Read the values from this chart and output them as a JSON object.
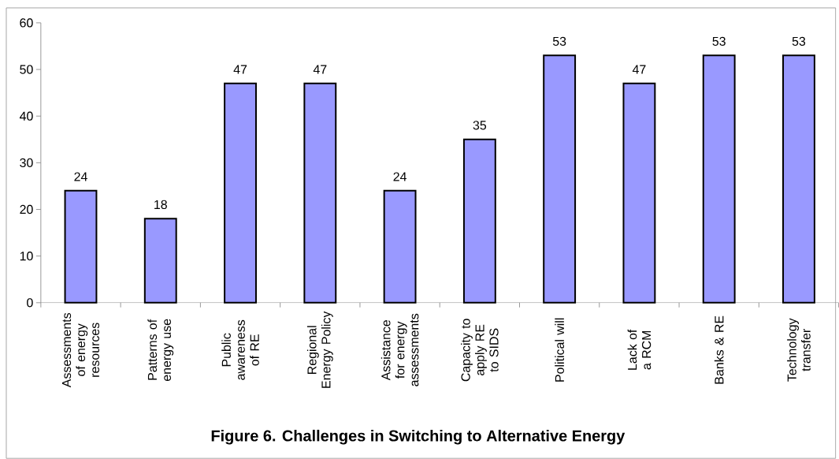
{
  "chart_data": {
    "type": "bar",
    "title": "Figure 6. Challenges in Switching to Alternative Energy",
    "categories": [
      "Assessments of energy resources",
      "Patterns of energy use",
      "Public awareness of RE",
      "Regional Energy Policy",
      "Assistance for energy assessments",
      "Capacity to apply RE to SIDS",
      "Political will",
      "Lack of a RCM",
      "Banks & RE",
      "Technology transfer"
    ],
    "values": [
      24,
      18,
      47,
      47,
      24,
      35,
      53,
      47,
      53,
      53
    ],
    "color": "#9999ff",
    "ylim": [
      0,
      60
    ],
    "yticks": [
      0,
      10,
      20,
      30,
      40,
      50,
      60
    ],
    "data_labels": true
  }
}
